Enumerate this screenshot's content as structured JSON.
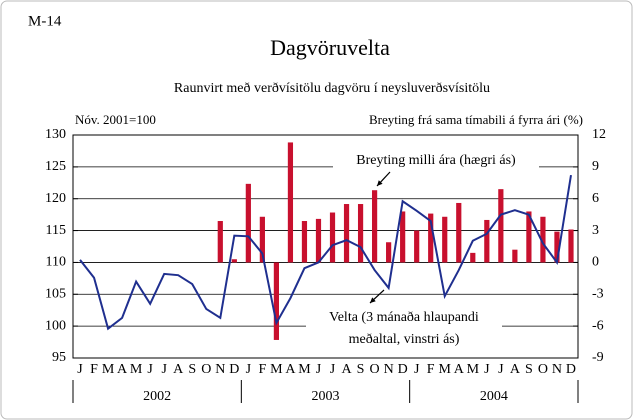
{
  "chart_data": {
    "type": "bar-line",
    "label": "M-14",
    "title": "Dagvöruvelta",
    "subtitle": "Raunvirt með verðvísitölu dagvöru í neysluverðsvísitölu",
    "ylabel": "Nóv. 2001=100",
    "y2label": "Breyting frá sama tímabili á fyrra ári (%)",
    "categories": [
      "J",
      "F",
      "M",
      "A",
      "M",
      "J",
      "J",
      "A",
      "S",
      "O",
      "N",
      "D",
      "J",
      "F",
      "M",
      "A",
      "M",
      "J",
      "J",
      "A",
      "S",
      "O",
      "N",
      "D",
      "J",
      "F",
      "M",
      "A",
      "M",
      "J",
      "J",
      "A",
      "S",
      "O",
      "N",
      "D"
    ],
    "years": [
      "2002",
      "2003",
      "2004"
    ],
    "ylim": [
      95,
      130
    ],
    "yticks": [
      95,
      100,
      105,
      110,
      115,
      120,
      125,
      130
    ],
    "y2lim": [
      -9,
      12
    ],
    "y2ticks": [
      -9,
      -6,
      -3,
      0,
      3,
      6,
      9,
      12
    ],
    "grid": true,
    "series": [
      {
        "type": "bar",
        "axis": "y2",
        "color": "#c8102e",
        "values": [
          null,
          null,
          null,
          null,
          null,
          null,
          null,
          null,
          null,
          null,
          3.9,
          0.3,
          7.4,
          4.3,
          -7.3,
          11.3,
          3.9,
          4.1,
          4.7,
          5.5,
          5.5,
          6.8,
          1.9,
          4.8,
          3.0,
          4.6,
          4.3,
          5.6,
          0.9,
          4.0,
          6.9,
          1.2,
          4.8,
          4.3,
          2.9,
          3.1
        ]
      },
      {
        "type": "line",
        "axis": "y",
        "color": "#1f2f8f",
        "values": [
          110.4,
          107.6,
          99.6,
          101.3,
          107,
          103.5,
          108.2,
          108,
          106.6,
          102.7,
          101.3,
          114.2,
          114.1,
          111.4,
          100.5,
          104.4,
          109.1,
          110,
          112.7,
          113.5,
          112.4,
          108.8,
          106,
          119.6,
          118.1,
          116.5,
          104.7,
          108.8,
          113.4,
          114.5,
          117.5,
          118.2,
          117.5,
          113,
          110,
          123.7
        ]
      }
    ],
    "annotations": [
      {
        "lines": [
          "Breyting milli ára (hægri ás)"
        ]
      },
      {
        "lines": [
          "Velta (3 mánaða hlaupandi",
          "meðaltal, vinstri ás)"
        ]
      }
    ]
  }
}
